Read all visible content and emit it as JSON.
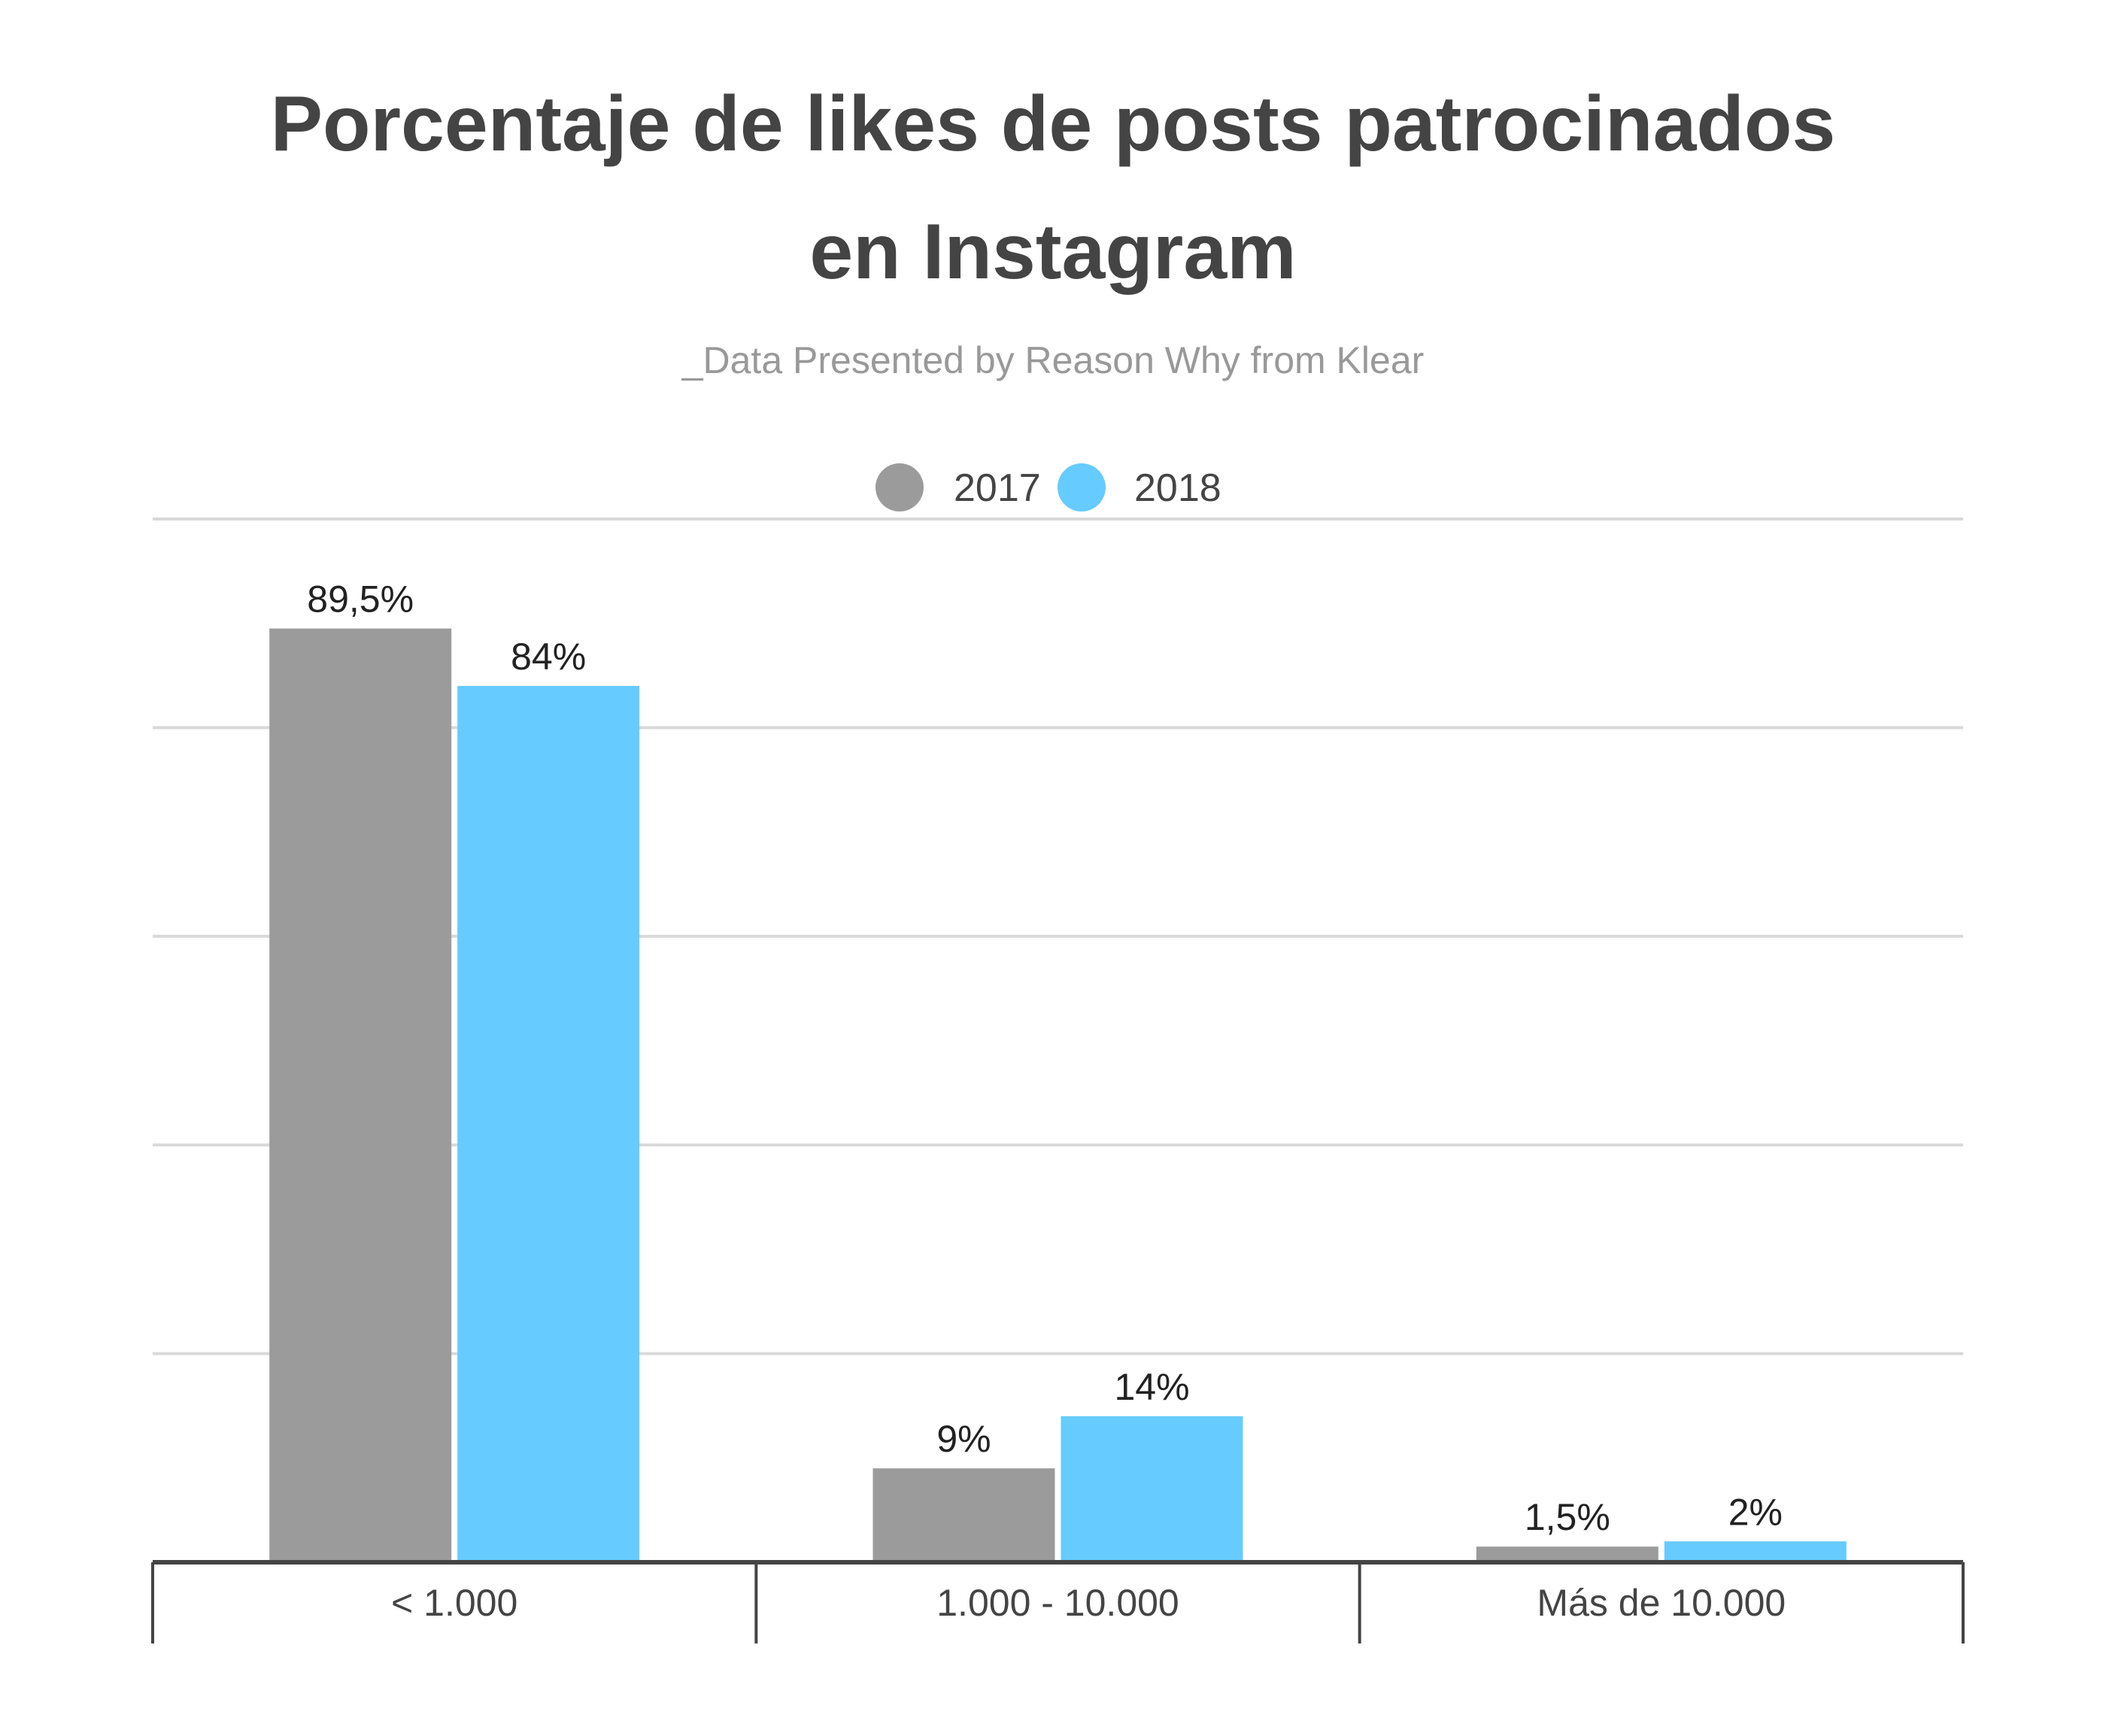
{
  "chart_data": {
    "type": "bar",
    "title_lines": [
      "Porcentaje de likes de posts patrocinados",
      "en Instagram"
    ],
    "subtitle": "_Data Presented by Reason Why from Klear",
    "categories": [
      "< 1.000",
      "1.000 - 10.000",
      "Más de 10.000"
    ],
    "series": [
      {
        "name": "2017",
        "color": "#9b9b9b",
        "values": [
          89.5,
          9,
          1.5
        ],
        "labels": [
          "89,5%",
          "9%",
          "1,5%"
        ]
      },
      {
        "name": "2018",
        "color": "#66cbff",
        "values": [
          84,
          14,
          2
        ],
        "labels": [
          "84%",
          "14%",
          "2%"
        ]
      }
    ],
    "ylim": [
      0,
      100
    ],
    "grid": true,
    "legend_position": "top-center"
  }
}
